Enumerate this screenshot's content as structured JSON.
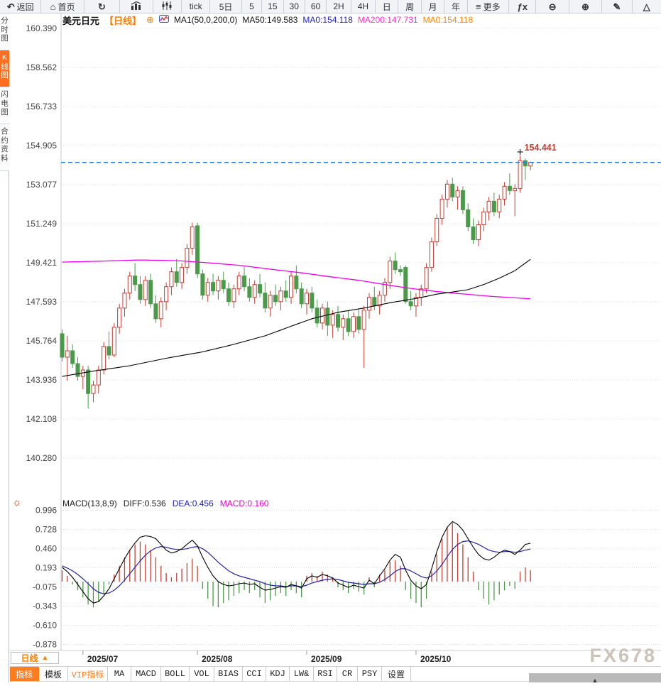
{
  "toolbar": {
    "items": [
      {
        "name": "back-button",
        "label": "返回",
        "glyph": "↶",
        "icon_name": "back-arrow-icon"
      },
      {
        "name": "home-button",
        "label": "首页",
        "glyph": "⌂",
        "icon_name": "home-icon"
      },
      {
        "name": "refresh-button",
        "label": "",
        "glyph": "↻",
        "icon_name": "refresh-icon"
      },
      {
        "name": "bar-chart-button",
        "label": "",
        "icon": "bar-chart-icon"
      },
      {
        "name": "candlestick-button",
        "label": "",
        "icon": "candlestick-icon"
      },
      {
        "name": "tick-button",
        "label": "tick"
      },
      {
        "name": "period-5d-button",
        "label": "5日"
      },
      {
        "name": "period-5m-button",
        "label": "5"
      },
      {
        "name": "period-15m-button",
        "label": "15"
      },
      {
        "name": "period-30m-button",
        "label": "30"
      },
      {
        "name": "period-60m-button",
        "label": "60"
      },
      {
        "name": "period-2h-button",
        "label": "2H"
      },
      {
        "name": "period-4h-button",
        "label": "4H"
      },
      {
        "name": "period-day-button",
        "label": "日"
      },
      {
        "name": "period-week-button",
        "label": "周"
      },
      {
        "name": "period-month-button",
        "label": "月"
      },
      {
        "name": "period-year-button",
        "label": "年"
      },
      {
        "name": "more-button",
        "label": "更多",
        "glyph": "≡",
        "icon_name": "menu-icon"
      },
      {
        "name": "fx-button",
        "label": "",
        "glyph": "ƒx",
        "icon_name": "formula-icon"
      },
      {
        "name": "zoom-out-button",
        "label": "",
        "glyph": "⊖",
        "icon_name": "zoom-out-icon"
      },
      {
        "name": "zoom-in-button",
        "label": "",
        "glyph": "⊕",
        "icon_name": "zoom-in-icon"
      },
      {
        "name": "draw-button",
        "label": "",
        "glyph": "✎",
        "icon_name": "pencil-icon"
      },
      {
        "name": "shape-button",
        "label": "",
        "glyph": "△",
        "icon_name": "triangle-icon"
      }
    ]
  },
  "sidebar": {
    "items": [
      {
        "name": "tab-time-share-chart",
        "label": "分时图",
        "selected": false
      },
      {
        "name": "tab-kline-chart",
        "label": "K线图",
        "selected": true
      },
      {
        "name": "tab-lightning-chart",
        "label": "闪电图",
        "selected": false
      },
      {
        "name": "tab-contract-info",
        "label": "合约资料",
        "selected": false
      }
    ]
  },
  "chart_header": {
    "symbol": "美元日元",
    "period_tag": "【日线】",
    "add_glyph": "⊕",
    "ma_settings": "MA1(50,0,200,0)",
    "ma50": "MA50:149.583",
    "ma0_blue": "MA0:154.118",
    "ma200": "MA200:147.731",
    "ma0_orange": "MA0:154.118"
  },
  "macd_header": {
    "title": "MACD(13,8,9)",
    "diff": "DIFF:0.536",
    "dea": "DEA:0.456",
    "macd": "MACD:0.160",
    "sun_glyph": "☼"
  },
  "period_button": {
    "label": "日线",
    "arrow": "▲"
  },
  "bottom_toolbar": {
    "items": [
      {
        "name": "tab-indicator",
        "label": "指标",
        "selected": true
      },
      {
        "name": "tab-template",
        "label": "模板"
      },
      {
        "name": "tab-vip-indicator",
        "label": "VIP指标",
        "vip": true
      },
      {
        "name": "indicator-ma",
        "label": "MA"
      },
      {
        "name": "indicator-macd",
        "label": "MACD"
      },
      {
        "name": "indicator-boll",
        "label": "BOLL"
      },
      {
        "name": "indicator-vol",
        "label": "VOL"
      },
      {
        "name": "indicator-bias",
        "label": "BIAS"
      },
      {
        "name": "indicator-cci",
        "label": "CCI"
      },
      {
        "name": "indicator-kdj",
        "label": "KDJ"
      },
      {
        "name": "indicator-lw",
        "label": "LW&"
      },
      {
        "name": "indicator-rsi",
        "label": "RSI"
      },
      {
        "name": "indicator-cr",
        "label": "CR"
      },
      {
        "name": "indicator-psy",
        "label": "PSY"
      },
      {
        "name": "settings-button",
        "label": "设置"
      }
    ]
  },
  "watermark": "FX678",
  "scroll_handle_glyph": "▲",
  "colors": {
    "up": "#c53d34",
    "down": "#4a9a4a",
    "ma50": "#000000",
    "ma200": "#f000f0",
    "diff_line": "#000000",
    "dea_line": "#2222aa",
    "accent_orange": "#ff7e00",
    "current_price_line": "#2078dd",
    "price_label": "#cf3b30",
    "selected_tab_bg": "#ff6e1e"
  },
  "chart_data": {
    "type": "candlestick",
    "title": "美元日元 日线 (USD/JPY daily with MA50/MA200 and MACD(13,8,9))",
    "y_axis_labels": [
      "160.390",
      "158.562",
      "156.733",
      "154.905",
      "153.077",
      "151.249",
      "149.421",
      "147.593",
      "145.764",
      "143.936",
      "142.108",
      "140.280"
    ],
    "macd_axis_labels": [
      "0.996",
      "0.728",
      "0.460",
      "0.193",
      "-0.075",
      "-0.343",
      "-0.610",
      "-0.878"
    ],
    "x_axis_labels": [
      "2025/07",
      "2025/08",
      "2025/09",
      "2025/10"
    ],
    "month_tick_indices": [
      4,
      26,
      47,
      68
    ],
    "current_price": 154.118,
    "high_marker": {
      "index": 88,
      "price": 154.441,
      "label": "154.441"
    },
    "candles": [
      [
        146.1,
        146.3,
        144.8,
        145.0
      ],
      [
        145.0,
        146.0,
        143.9,
        145.3
      ],
      [
        145.3,
        145.6,
        144.5,
        144.7
      ],
      [
        144.7,
        145.0,
        143.9,
        144.1
      ],
      [
        144.1,
        144.6,
        143.5,
        144.4
      ],
      [
        144.4,
        144.6,
        142.6,
        143.3
      ],
      [
        143.3,
        143.9,
        142.9,
        143.7
      ],
      [
        143.7,
        144.6,
        143.3,
        144.4
      ],
      [
        144.4,
        145.7,
        144.2,
        145.5
      ],
      [
        145.5,
        146.2,
        144.9,
        145.1
      ],
      [
        145.1,
        146.6,
        145.0,
        146.4
      ],
      [
        146.4,
        147.5,
        146.1,
        147.3
      ],
      [
        147.3,
        148.2,
        146.9,
        148.0
      ],
      [
        148.0,
        149.0,
        147.7,
        148.8
      ],
      [
        148.8,
        149.4,
        148.1,
        148.4
      ],
      [
        148.4,
        148.8,
        147.5,
        147.7
      ],
      [
        147.7,
        148.8,
        147.4,
        148.6
      ],
      [
        148.6,
        148.9,
        147.3,
        147.5
      ],
      [
        147.5,
        147.9,
        146.6,
        146.8
      ],
      [
        146.8,
        147.8,
        146.4,
        147.6
      ],
      [
        147.6,
        148.5,
        147.2,
        148.3
      ],
      [
        148.3,
        149.2,
        147.9,
        149.0
      ],
      [
        149.0,
        149.6,
        148.3,
        148.5
      ],
      [
        148.5,
        149.4,
        148.2,
        149.2
      ],
      [
        149.2,
        150.3,
        148.9,
        150.1
      ],
      [
        150.1,
        151.3,
        149.8,
        151.1
      ],
      [
        151.15,
        151.3,
        148.7,
        148.9
      ],
      [
        148.9,
        149.1,
        147.7,
        147.9
      ],
      [
        147.9,
        148.7,
        147.6,
        148.5
      ],
      [
        148.5,
        148.9,
        147.9,
        148.1
      ],
      [
        148.1,
        148.8,
        147.7,
        148.6
      ],
      [
        148.6,
        149.0,
        148.0,
        148.2
      ],
      [
        148.2,
        148.5,
        147.4,
        147.6
      ],
      [
        147.6,
        148.4,
        147.3,
        148.2
      ],
      [
        148.2,
        149.0,
        147.9,
        148.8
      ],
      [
        148.8,
        149.2,
        148.1,
        148.3
      ],
      [
        148.3,
        148.7,
        147.6,
        147.8
      ],
      [
        147.8,
        148.6,
        147.5,
        148.4
      ],
      [
        148.4,
        148.9,
        147.8,
        148.0
      ],
      [
        148.0,
        148.5,
        147.1,
        147.3
      ],
      [
        147.3,
        148.1,
        146.9,
        147.9
      ],
      [
        147.9,
        148.4,
        147.4,
        147.6
      ],
      [
        147.6,
        148.3,
        147.2,
        148.1
      ],
      [
        148.1,
        148.6,
        147.6,
        147.8
      ],
      [
        147.8,
        149.0,
        147.5,
        148.8
      ],
      [
        148.8,
        149.3,
        148.0,
        148.2
      ],
      [
        148.2,
        148.5,
        147.3,
        147.5
      ],
      [
        147.5,
        148.2,
        147.0,
        148.0
      ],
      [
        148.0,
        148.3,
        147.1,
        147.3
      ],
      [
        147.3,
        147.7,
        146.4,
        146.6
      ],
      [
        146.6,
        147.5,
        146.3,
        147.3
      ],
      [
        147.3,
        147.6,
        146.0,
        146.5
      ],
      [
        146.5,
        147.2,
        145.9,
        147.0
      ],
      [
        147.0,
        147.4,
        146.2,
        146.4
      ],
      [
        146.4,
        147.0,
        145.8,
        146.8
      ],
      [
        146.8,
        147.2,
        146.0,
        146.2
      ],
      [
        146.2,
        147.1,
        145.9,
        146.9
      ],
      [
        146.9,
        147.3,
        146.1,
        146.3
      ],
      [
        146.3,
        147.4,
        144.5,
        147.2
      ],
      [
        147.2,
        148.0,
        146.8,
        147.8
      ],
      [
        147.8,
        148.3,
        147.2,
        147.4
      ],
      [
        147.4,
        148.1,
        147.0,
        147.9
      ],
      [
        147.9,
        148.7,
        147.6,
        148.5
      ],
      [
        148.5,
        149.7,
        148.2,
        149.5
      ],
      [
        149.5,
        149.9,
        148.9,
        149.1
      ],
      [
        149.1,
        149.3,
        148.8,
        149.0
      ],
      [
        149.2,
        149.3,
        147.5,
        147.6
      ],
      [
        147.6,
        148.1,
        147.2,
        147.4
      ],
      [
        147.4,
        148.0,
        146.9,
        147.8
      ],
      [
        147.8,
        148.4,
        147.4,
        148.2
      ],
      [
        148.2,
        149.4,
        148.0,
        149.2
      ],
      [
        149.2,
        150.6,
        149.0,
        150.4
      ],
      [
        150.4,
        151.7,
        150.2,
        151.5
      ],
      [
        151.5,
        152.6,
        151.2,
        152.4
      ],
      [
        152.4,
        153.3,
        152.0,
        153.1
      ],
      [
        153.1,
        153.4,
        152.3,
        152.5
      ],
      [
        152.5,
        153.0,
        151.9,
        152.8
      ],
      [
        152.8,
        153.0,
        151.7,
        151.9
      ],
      [
        151.9,
        152.2,
        150.9,
        151.1
      ],
      [
        151.1,
        151.5,
        150.3,
        150.5
      ],
      [
        150.5,
        151.4,
        150.2,
        151.2
      ],
      [
        151.2,
        152.0,
        150.9,
        151.8
      ],
      [
        151.8,
        152.5,
        151.4,
        152.3
      ],
      [
        152.3,
        152.7,
        151.6,
        151.8
      ],
      [
        151.8,
        152.6,
        151.5,
        152.4
      ],
      [
        152.4,
        153.2,
        152.1,
        153.0
      ],
      [
        153.0,
        153.6,
        152.6,
        152.8
      ],
      [
        152.8,
        153.1,
        151.6,
        152.9
      ],
      [
        152.9,
        154.44,
        152.7,
        154.2
      ],
      [
        154.2,
        154.3,
        153.3,
        153.95
      ],
      [
        153.95,
        154.15,
        153.75,
        154.12
      ]
    ],
    "ma50_keypoints": [
      [
        0,
        144.1
      ],
      [
        6,
        144.35
      ],
      [
        13,
        144.6
      ],
      [
        20,
        144.95
      ],
      [
        27,
        145.25
      ],
      [
        33,
        145.6
      ],
      [
        39,
        146.0
      ],
      [
        44,
        146.45
      ],
      [
        48,
        146.8
      ],
      [
        53,
        147.1
      ],
      [
        58,
        147.3
      ],
      [
        63,
        147.55
      ],
      [
        68,
        147.75
      ],
      [
        72,
        147.95
      ],
      [
        75,
        148.05
      ],
      [
        78,
        148.16
      ],
      [
        81,
        148.4
      ],
      [
        84,
        148.7
      ],
      [
        87,
        149.05
      ],
      [
        90,
        149.58
      ]
    ],
    "ma200_keypoints": [
      [
        0,
        149.45
      ],
      [
        8,
        149.5
      ],
      [
        15,
        149.55
      ],
      [
        22,
        149.52
      ],
      [
        28,
        149.42
      ],
      [
        34,
        149.3
      ],
      [
        40,
        149.12
      ],
      [
        46,
        148.95
      ],
      [
        52,
        148.75
      ],
      [
        57,
        148.6
      ],
      [
        62,
        148.4
      ],
      [
        67,
        148.22
      ],
      [
        71,
        148.1
      ],
      [
        75,
        148.0
      ],
      [
        79,
        147.92
      ],
      [
        83,
        147.84
      ],
      [
        87,
        147.78
      ],
      [
        90,
        147.73
      ]
    ],
    "macd": {
      "diff": [
        0.2,
        0.14,
        0.06,
        -0.04,
        -0.14,
        -0.24,
        -0.3,
        -0.28,
        -0.2,
        -0.1,
        0.04,
        0.18,
        0.32,
        0.44,
        0.54,
        0.62,
        0.64,
        0.63,
        0.6,
        0.52,
        0.44,
        0.4,
        0.42,
        0.46,
        0.52,
        0.58,
        0.5,
        0.34,
        0.2,
        0.08,
        0.0,
        -0.04,
        -0.06,
        -0.05,
        -0.03,
        -0.02,
        -0.04,
        -0.03,
        -0.08,
        -0.12,
        -0.11,
        -0.09,
        -0.07,
        -0.08,
        -0.04,
        -0.06,
        -0.09,
        0.04,
        0.08,
        0.06,
        0.1,
        0.08,
        0.05,
        -0.02,
        -0.05,
        -0.08,
        -0.05,
        -0.07,
        -0.09,
        0.02,
        -0.03,
        0.08,
        0.18,
        0.3,
        0.38,
        0.34,
        0.16,
        0.02,
        -0.06,
        -0.1,
        -0.04,
        0.18,
        0.42,
        0.62,
        0.76,
        0.84,
        0.8,
        0.72,
        0.6,
        0.48,
        0.38,
        0.32,
        0.3,
        0.34,
        0.4,
        0.44,
        0.42,
        0.38,
        0.44,
        0.52,
        0.536
      ],
      "dea": [
        0.22,
        0.19,
        0.15,
        0.1,
        0.04,
        -0.03,
        -0.1,
        -0.15,
        -0.17,
        -0.16,
        -0.12,
        -0.06,
        0.02,
        0.11,
        0.2,
        0.29,
        0.37,
        0.43,
        0.47,
        0.49,
        0.48,
        0.46,
        0.45,
        0.45,
        0.46,
        0.48,
        0.49,
        0.46,
        0.41,
        0.34,
        0.27,
        0.21,
        0.15,
        0.11,
        0.08,
        0.06,
        0.04,
        0.02,
        0.0,
        -0.03,
        -0.05,
        -0.06,
        -0.06,
        -0.07,
        -0.06,
        -0.06,
        -0.07,
        -0.05,
        -0.02,
        0.0,
        0.02,
        0.03,
        0.04,
        0.03,
        0.01,
        -0.01,
        -0.02,
        -0.03,
        -0.04,
        -0.03,
        -0.03,
        -0.01,
        0.03,
        0.08,
        0.14,
        0.18,
        0.18,
        0.15,
        0.11,
        0.07,
        0.05,
        0.08,
        0.15,
        0.24,
        0.35,
        0.45,
        0.52,
        0.56,
        0.57,
        0.55,
        0.52,
        0.48,
        0.44,
        0.42,
        0.41,
        0.42,
        0.42,
        0.41,
        0.42,
        0.44,
        0.456
      ],
      "hist": [
        0.16,
        0.08,
        -0.04,
        -0.12,
        -0.22,
        -0.32,
        -0.36,
        -0.28,
        -0.16,
        -0.04,
        0.1,
        0.22,
        0.34,
        0.44,
        0.52,
        0.56,
        0.52,
        0.44,
        0.34,
        0.22,
        0.12,
        0.06,
        0.12,
        0.18,
        0.26,
        0.32,
        0.22,
        -0.1,
        -0.24,
        -0.34,
        -0.36,
        -0.3,
        -0.26,
        -0.2,
        -0.16,
        -0.12,
        -0.16,
        -0.12,
        -0.22,
        -0.3,
        -0.26,
        -0.2,
        -0.16,
        -0.2,
        -0.12,
        -0.16,
        -0.22,
        0.08,
        0.12,
        0.08,
        0.14,
        0.1,
        0.06,
        -0.08,
        -0.12,
        -0.16,
        -0.1,
        -0.14,
        -0.18,
        0.06,
        -0.08,
        0.1,
        0.16,
        0.28,
        0.3,
        0.22,
        -0.12,
        -0.24,
        -0.3,
        -0.36,
        -0.24,
        0.14,
        0.38,
        0.6,
        0.76,
        0.82,
        0.68,
        0.52,
        0.34,
        0.14,
        -0.12,
        -0.24,
        -0.32,
        -0.26,
        -0.18,
        -0.12,
        -0.06,
        -0.1,
        0.14,
        0.2,
        0.16
      ]
    }
  }
}
